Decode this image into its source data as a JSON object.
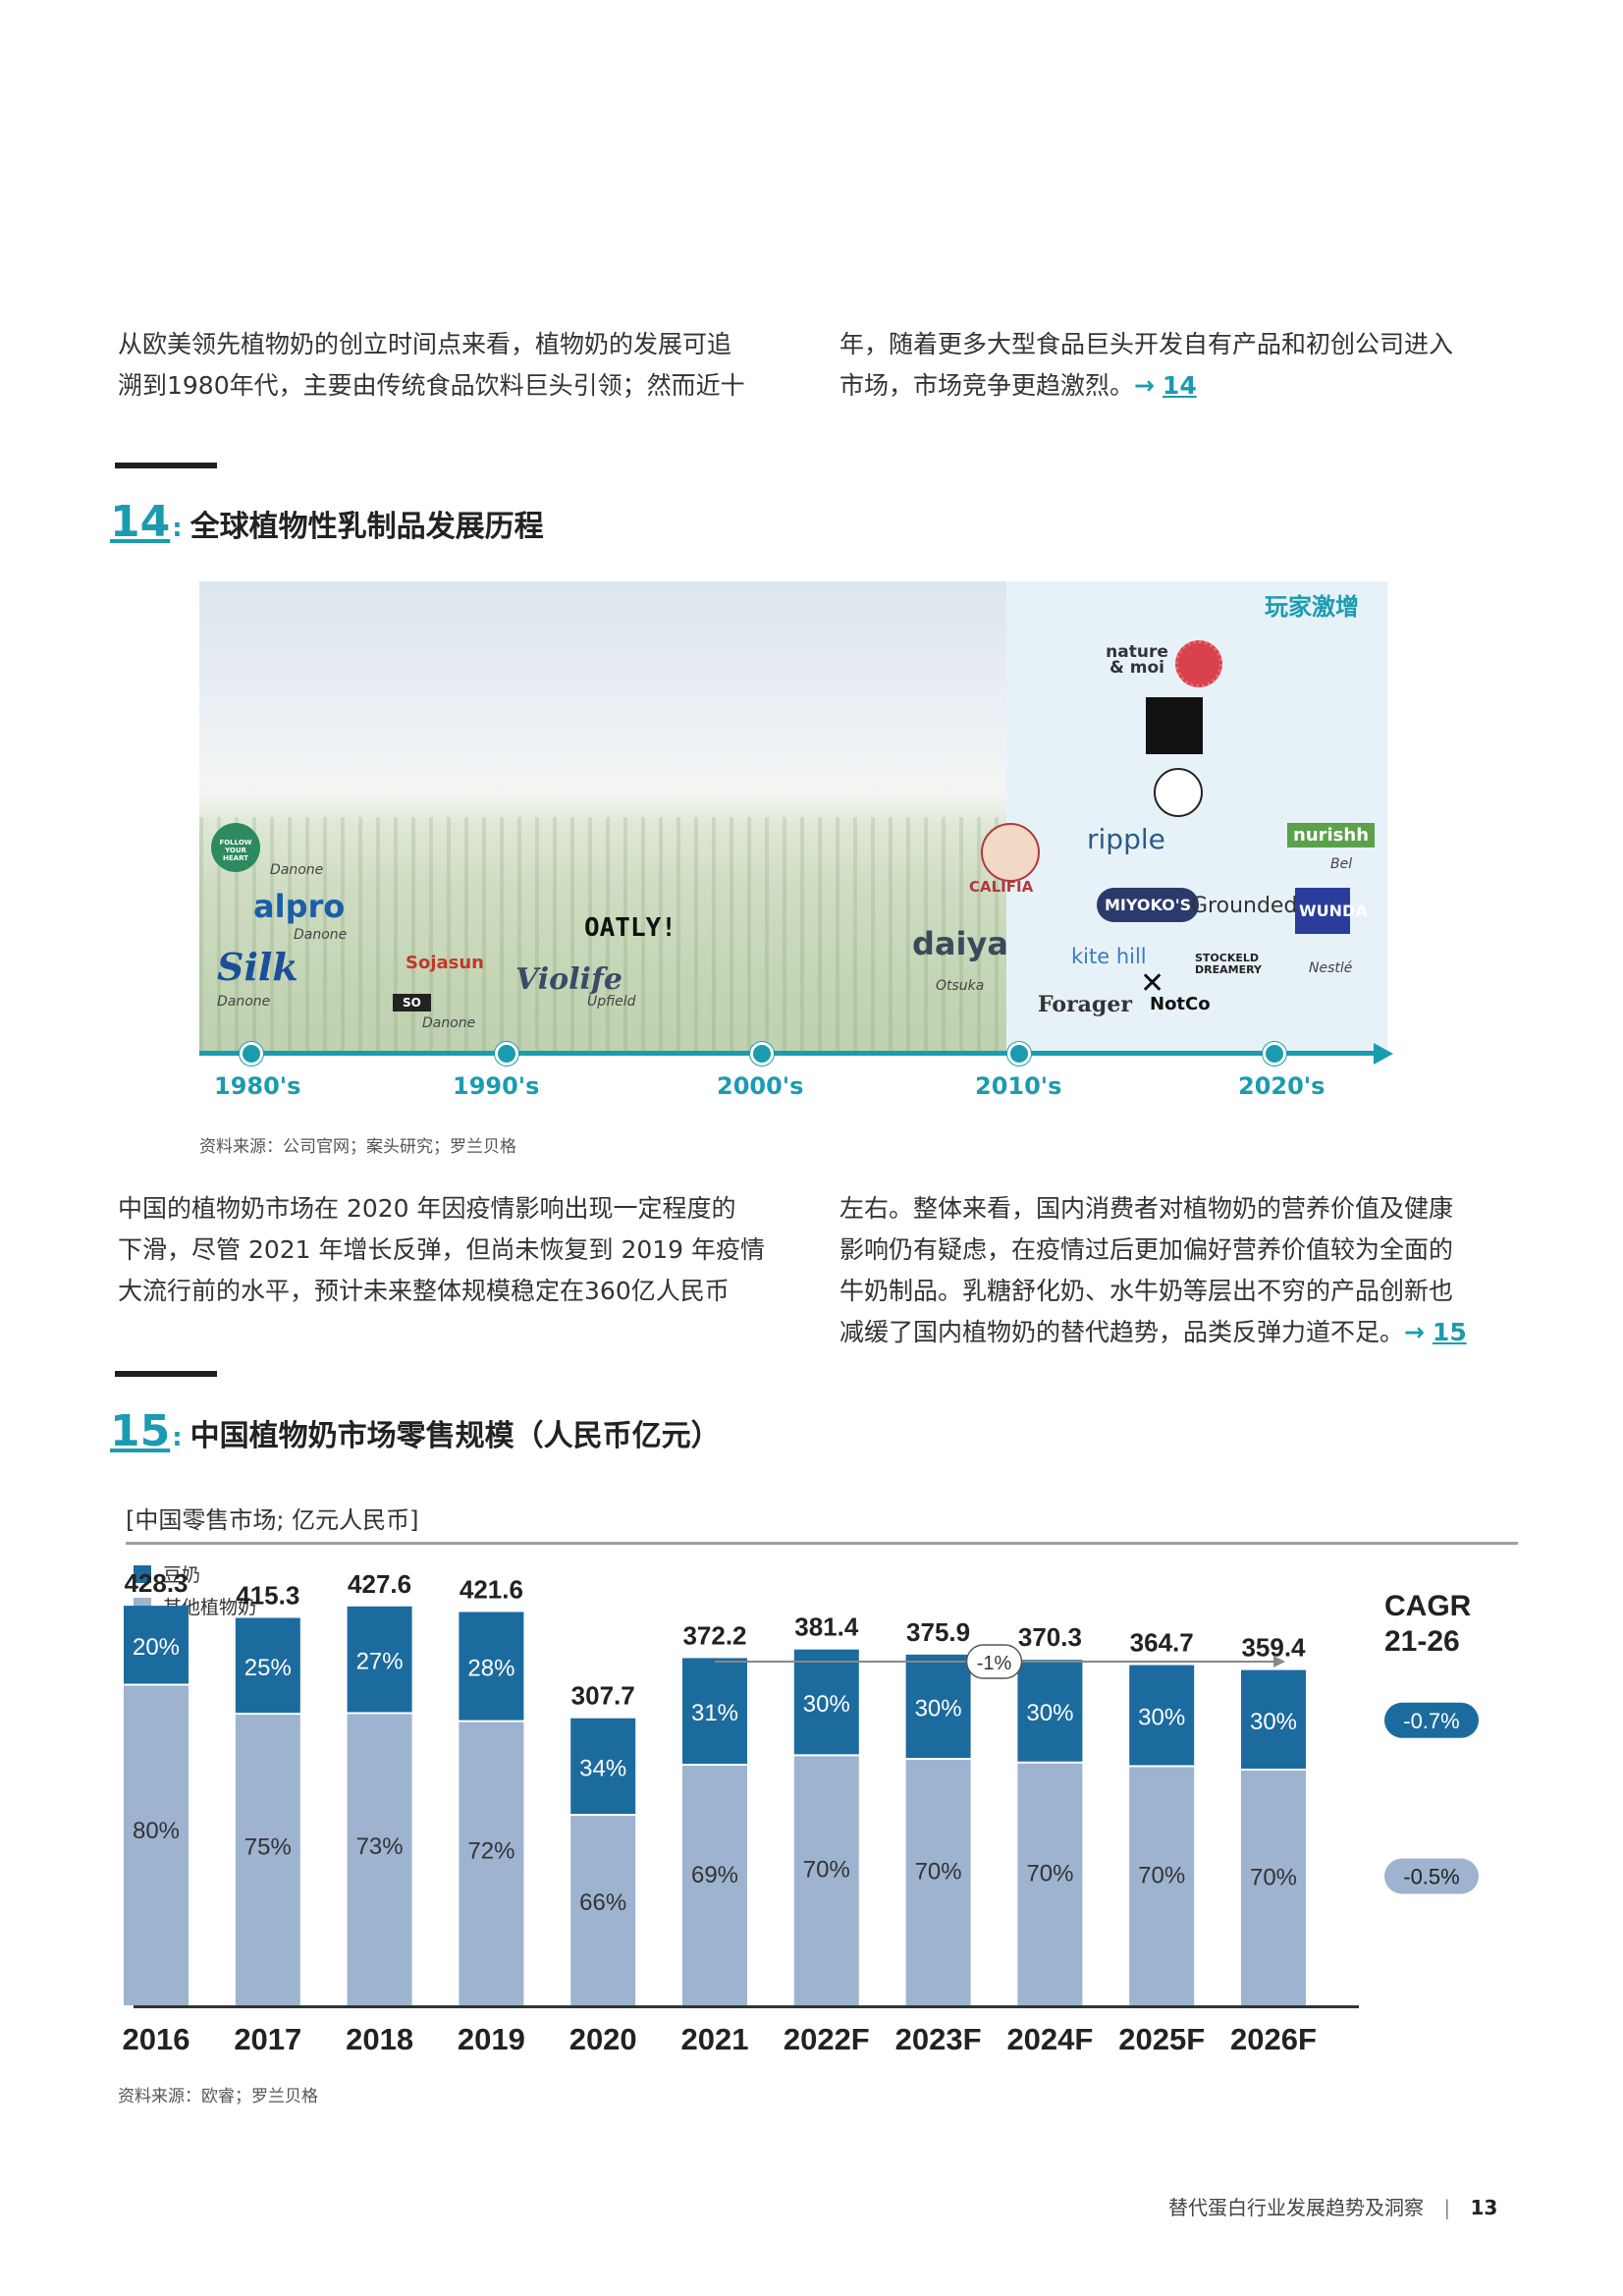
{
  "intro": {
    "left_lines": [
      "从欧美领先植物奶的创立时间点来看，植物奶的发展可追",
      "溯到1980年代，主要由传统食品饮料巨头引领；然而近十"
    ],
    "right_line1": "年，随着更多大型食品巨头开发自有产品和初创公司进入",
    "right_line2": "市场，市场竞争更趋激烈。",
    "arrow": "→",
    "ref": "14"
  },
  "figure14": {
    "number": "14",
    "colon": ":",
    "title": "全球植物性乳制品发展历程",
    "boom_label": "玩家激增",
    "eras": [
      "1980's",
      "1990's",
      "2000's",
      "2010's",
      "2020's"
    ],
    "brands": {
      "follow_heart": "FOLLOW YOUR HEART",
      "danone1": "Danone",
      "alpro": "alpro",
      "danone2": "Danone",
      "silk": "Silk",
      "danone3": "Danone",
      "sojasun": "Sojasun",
      "so": "SO",
      "danone4": "Danone",
      "oatly": "OATLY!",
      "violife": "Violife",
      "upfield": "Upfield",
      "califia": "CALIFIA",
      "daiya": "daiya",
      "otsuka": "Otsuka",
      "nature_moi": "nature & moi",
      "ripple": "ripple",
      "nurishh": "nurishh",
      "bel": "Bel",
      "miyokos": "MIYOKO'S",
      "grounded": "Grounded",
      "wunda": "WUNDA",
      "kitehill": "kite hill",
      "stockeld": "STOCKELD DREAMERY",
      "nestle": "Nestlé",
      "forager": "Forager",
      "notco": "NotCo"
    },
    "source": "资料来源：公司官网；案头研究；罗兰贝格"
  },
  "mid": {
    "left_lines": [
      "中国的植物奶市场在 2020 年因疫情影响出现一定程度的",
      "下滑，尽管 2021 年增长反弹，但尚未恢复到 2019 年疫情",
      "大流行前的水平，预计未来整体规模稳定在360亿人民币"
    ],
    "right_lines": [
      "左右。整体来看，国内消费者对植物奶的营养价值及健康",
      "影响仍有疑虑，在疫情过后更加偏好营养价值较为全面的",
      "牛奶制品。乳糖舒化奶、水牛奶等层出不穷的产品创新也"
    ],
    "right_last": "减缓了国内植物奶的替代趋势，品类反弹力道不足。",
    "arrow": "→",
    "ref": "15"
  },
  "figure15": {
    "number": "15",
    "colon": ":",
    "title": "中国植物奶市场零售规模（人民币亿元）",
    "source": "资料来源：欧睿；罗兰贝格"
  },
  "colors": {
    "soy": "#1c6b9e",
    "other": "#9db3cf",
    "accent": "#1b9bb0",
    "pill": "#1c6b9e",
    "pill2": "#9db3cf"
  },
  "chart_data": {
    "type": "bar",
    "subtitle": "[中国零售市场; 亿元人民币]",
    "categories": [
      "2016",
      "2017",
      "2018",
      "2019",
      "2020",
      "2021",
      "2022F",
      "2023F",
      "2024F",
      "2025F",
      "2026F"
    ],
    "totals": [
      428.3,
      415.3,
      427.6,
      421.6,
      307.7,
      372.2,
      381.4,
      375.9,
      370.3,
      364.7,
      359.4
    ],
    "series": [
      {
        "name": "豆奶",
        "share_labels": [
          "20%",
          "25%",
          "27%",
          "28%",
          "34%",
          "31%",
          "30%",
          "30%",
          "30%",
          "30%",
          "30%"
        ],
        "shares": [
          20,
          25,
          27,
          28,
          34,
          31,
          30,
          30,
          30,
          30,
          30
        ]
      },
      {
        "name": "其他植物奶",
        "share_labels": [
          "80%",
          "75%",
          "73%",
          "72%",
          "66%",
          "69%",
          "70%",
          "70%",
          "70%",
          "70%",
          "70%"
        ],
        "shares": [
          80,
          75,
          73,
          72,
          66,
          69,
          70,
          70,
          70,
          70,
          70
        ]
      }
    ],
    "cagr_title": [
      "CAGR",
      "21-26"
    ],
    "cagr_values": [
      "-0.7%",
      "-0.5%"
    ],
    "trend_label": "-1%",
    "ylim": [
      0,
      450
    ]
  },
  "footer": {
    "title": "替代蛋白行业发展趋势及洞察",
    "sep": "|",
    "page": "13"
  }
}
